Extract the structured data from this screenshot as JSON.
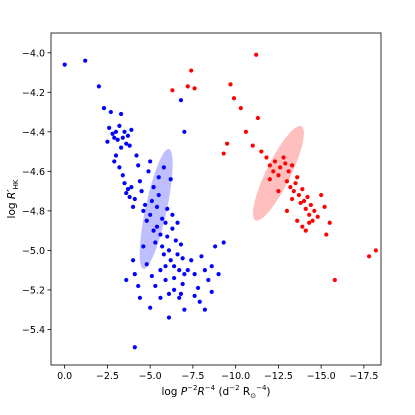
{
  "chart_data": {
    "type": "scatter",
    "xlabel_parts": [
      "log ",
      "P",
      "−2",
      "R",
      "−4",
      " (d",
      "−2",
      " R",
      "⊙",
      "−4",
      ")"
    ],
    "ylabel_parts": [
      "log ",
      "R′",
      "HK"
    ],
    "xlim": [
      0.8,
      -18.5
    ],
    "ylim": [
      -5.58,
      -3.9
    ],
    "x_ticks": [
      0.0,
      -2.5,
      -5.0,
      -7.5,
      -10.0,
      -12.5,
      -15.0,
      -17.5
    ],
    "x_tick_labels": [
      "0.0",
      "−2.5",
      "−5.0",
      "−7.5",
      "−10.0",
      "−12.5",
      "−15.0",
      "−17.5"
    ],
    "y_ticks": [
      -4.0,
      -4.2,
      -4.4,
      -4.6,
      -4.8,
      -5.0,
      -5.2,
      -5.4
    ],
    "y_tick_labels": [
      "−4.0",
      "−4.2",
      "−4.4",
      "−4.6",
      "−4.8",
      "−5.0",
      "−5.2",
      "−5.4"
    ],
    "series": [
      {
        "color": "#0000ff",
        "points": [
          [
            0.0,
            -4.06
          ],
          [
            -1.2,
            -4.04
          ],
          [
            -2.0,
            -4.17
          ],
          [
            -2.3,
            -4.28
          ],
          [
            -2.5,
            -4.45
          ],
          [
            -2.6,
            -4.38
          ],
          [
            -2.7,
            -4.3
          ],
          [
            -2.8,
            -4.41
          ],
          [
            -2.9,
            -4.43
          ],
          [
            -3.0,
            -4.4
          ],
          [
            -3.1,
            -4.44
          ],
          [
            -3.2,
            -4.37
          ],
          [
            -3.3,
            -4.31
          ],
          [
            -3.3,
            -4.48
          ],
          [
            -3.4,
            -4.43
          ],
          [
            -3.5,
            -4.4
          ],
          [
            -3.6,
            -4.46
          ],
          [
            -3.7,
            -4.42
          ],
          [
            -3.8,
            -4.47
          ],
          [
            -3.9,
            -4.39
          ],
          [
            -2.9,
            -4.55
          ],
          [
            -3.0,
            -4.52
          ],
          [
            -3.2,
            -4.58
          ],
          [
            -3.4,
            -4.62
          ],
          [
            -3.5,
            -4.66
          ],
          [
            -3.6,
            -4.71
          ],
          [
            -3.7,
            -4.69
          ],
          [
            -3.8,
            -4.73
          ],
          [
            -3.9,
            -4.68
          ],
          [
            -4.0,
            -4.78
          ],
          [
            -4.1,
            -4.74
          ],
          [
            -4.2,
            -4.52
          ],
          [
            -4.3,
            -4.57
          ],
          [
            -4.4,
            -4.65
          ],
          [
            -4.5,
            -4.7
          ],
          [
            -4.6,
            -4.8
          ],
          [
            -4.7,
            -4.77
          ],
          [
            -4.8,
            -4.85
          ],
          [
            -4.9,
            -4.6
          ],
          [
            -5.0,
            -4.82
          ],
          [
            -5.1,
            -4.75
          ],
          [
            -5.2,
            -4.9
          ],
          [
            -5.3,
            -4.96
          ],
          [
            -5.4,
            -4.88
          ],
          [
            -5.5,
            -4.72
          ],
          [
            -5.6,
            -4.92
          ],
          [
            -5.7,
            -4.98
          ],
          [
            -5.8,
            -5.02
          ],
          [
            -5.9,
            -4.86
          ],
          [
            -6.0,
            -4.93
          ],
          [
            -6.1,
            -5.0
          ],
          [
            -6.2,
            -5.05
          ],
          [
            -6.3,
            -4.89
          ],
          [
            -6.4,
            -5.08
          ],
          [
            -6.5,
            -4.95
          ],
          [
            -6.6,
            -5.02
          ],
          [
            -6.7,
            -5.1
          ],
          [
            -6.8,
            -4.97
          ],
          [
            -6.9,
            -5.04
          ],
          [
            -7.0,
            -5.12
          ],
          [
            -5.2,
            -4.68
          ],
          [
            -5.5,
            -4.63
          ],
          [
            -5.8,
            -4.58
          ],
          [
            -6.2,
            -4.64
          ],
          [
            -5.0,
            -4.55
          ],
          [
            -5.4,
            -4.78
          ],
          [
            -5.7,
            -4.84
          ],
          [
            -6.0,
            -4.79
          ],
          [
            -6.3,
            -4.82
          ],
          [
            -6.6,
            -4.86
          ],
          [
            -7.0,
            -4.4
          ],
          [
            -6.8,
            -4.24
          ],
          [
            -4.6,
            -4.98
          ],
          [
            -4.8,
            -5.07
          ],
          [
            -5.1,
            -5.13
          ],
          [
            -5.3,
            -5.18
          ],
          [
            -5.6,
            -5.1
          ],
          [
            -5.9,
            -5.15
          ],
          [
            -6.1,
            -5.22
          ],
          [
            -6.4,
            -5.2
          ],
          [
            -6.7,
            -5.24
          ],
          [
            -6.9,
            -5.17
          ],
          [
            -7.2,
            -5.1
          ],
          [
            -7.4,
            -5.05
          ],
          [
            -7.6,
            -5.12
          ],
          [
            -7.8,
            -5.19
          ],
          [
            -8.0,
            -5.03
          ],
          [
            -8.2,
            -5.1
          ],
          [
            -8.4,
            -5.15
          ],
          [
            -8.6,
            -5.08
          ],
          [
            -8.8,
            -4.98
          ],
          [
            -9.0,
            -5.12
          ],
          [
            -9.3,
            -4.96
          ],
          [
            -4.1,
            -5.12
          ],
          [
            -4.3,
            -5.18
          ],
          [
            -3.6,
            -5.15
          ],
          [
            -4.0,
            -5.05
          ],
          [
            -4.4,
            -5.24
          ],
          [
            -5.0,
            -5.29
          ],
          [
            -5.6,
            -5.24
          ],
          [
            -6.1,
            -5.34
          ],
          [
            -6.8,
            -5.22
          ],
          [
            -7.6,
            -5.23
          ],
          [
            -8.2,
            -5.3
          ],
          [
            -7.0,
            -5.3
          ],
          [
            -4.1,
            -5.49
          ],
          [
            -8.6,
            -5.21
          ],
          [
            -7.9,
            -5.26
          ],
          [
            -6.4,
            -5.14
          ],
          [
            -5.9,
            -5.08
          ]
        ]
      },
      {
        "color": "#ff0000",
        "points": [
          [
            -6.3,
            -4.19
          ],
          [
            -7.2,
            -4.17
          ],
          [
            -7.4,
            -4.09
          ],
          [
            -7.6,
            -4.18
          ],
          [
            -9.3,
            -4.51
          ],
          [
            -9.5,
            -4.46
          ],
          [
            -9.7,
            -4.16
          ],
          [
            -9.9,
            -4.23
          ],
          [
            -10.3,
            -4.28
          ],
          [
            -11.2,
            -4.01
          ],
          [
            -11.3,
            -4.33
          ],
          [
            -10.6,
            -4.4
          ],
          [
            -11.0,
            -4.47
          ],
          [
            -11.5,
            -4.5
          ],
          [
            -11.8,
            -4.53
          ],
          [
            -12.0,
            -4.57
          ],
          [
            -12.2,
            -4.6
          ],
          [
            -12.3,
            -4.55
          ],
          [
            -12.5,
            -4.62
          ],
          [
            -12.6,
            -4.58
          ],
          [
            -12.8,
            -4.53
          ],
          [
            -12.9,
            -4.56
          ],
          [
            -13.0,
            -4.65
          ],
          [
            -13.1,
            -4.6
          ],
          [
            -13.2,
            -4.68
          ],
          [
            -13.3,
            -4.57
          ],
          [
            -13.4,
            -4.7
          ],
          [
            -13.5,
            -4.66
          ],
          [
            -13.6,
            -4.63
          ],
          [
            -13.7,
            -4.72
          ],
          [
            -13.8,
            -4.76
          ],
          [
            -13.9,
            -4.69
          ],
          [
            -14.0,
            -4.75
          ],
          [
            -14.1,
            -4.79
          ],
          [
            -14.2,
            -4.73
          ],
          [
            -14.3,
            -4.82
          ],
          [
            -14.4,
            -4.77
          ],
          [
            -14.5,
            -4.85
          ],
          [
            -14.6,
            -4.8
          ],
          [
            -14.8,
            -4.83
          ],
          [
            -13.0,
            -4.8
          ],
          [
            -13.3,
            -4.74
          ],
          [
            -13.6,
            -4.85
          ],
          [
            -13.9,
            -4.88
          ],
          [
            -14.1,
            -4.9
          ],
          [
            -14.3,
            -4.86
          ],
          [
            -12.5,
            -4.7
          ],
          [
            -12.0,
            -4.64
          ],
          [
            -15.0,
            -4.72
          ],
          [
            -15.2,
            -4.78
          ],
          [
            -15.5,
            -4.86
          ],
          [
            -15.3,
            -4.92
          ],
          [
            -15.8,
            -5.15
          ],
          [
            -17.8,
            -5.03
          ],
          [
            -18.2,
            -5.0
          ]
        ]
      }
    ],
    "ellipses": [
      {
        "color": "#0000ff",
        "opacity": 0.25,
        "cx": -5.35,
        "cy": -4.79,
        "semi_major": 0.31,
        "semi_minor": 0.054,
        "angle_deg": -78
      },
      {
        "color": "#ff0000",
        "opacity": 0.25,
        "cx": -12.5,
        "cy": -4.61,
        "semi_major": 0.265,
        "semi_minor": 0.062,
        "angle_deg": -64
      }
    ]
  }
}
